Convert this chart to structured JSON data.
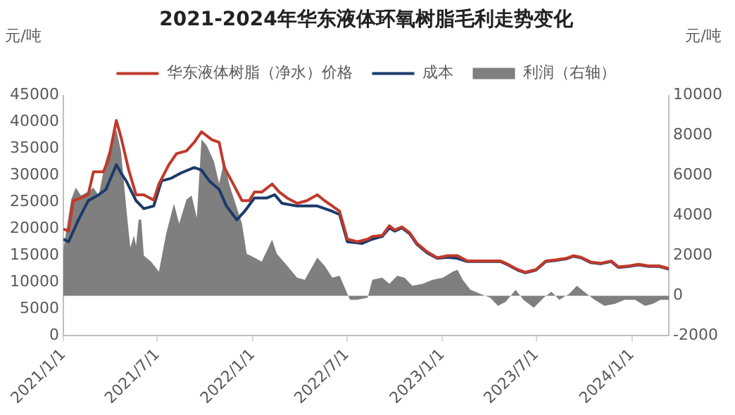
{
  "chart_data": {
    "type": "line",
    "title": "2021-2024年华东液体环氧树脂毛利走势变化",
    "ylabel": "元/吨",
    "y2label": "元/吨",
    "xlim": [
      "2021-01-01",
      "2024-03-12"
    ],
    "xticks": [
      {
        "value": "2021-01-01",
        "label": "2021/1/1"
      },
      {
        "value": "2021-07-01",
        "label": "2021/7/1"
      },
      {
        "value": "2022-01-01",
        "label": "2022/1/1"
      },
      {
        "value": "2022-07-01",
        "label": "2022/7/1"
      },
      {
        "value": "2023-01-01",
        "label": "2023/1/1"
      },
      {
        "value": "2023-07-01",
        "label": "2023/7/1"
      },
      {
        "value": "2024-01-01",
        "label": "2024/1/1"
      }
    ],
    "ylim": [
      0,
      45000
    ],
    "yticks": [
      0,
      5000,
      10000,
      15000,
      20000,
      25000,
      30000,
      35000,
      40000,
      45000
    ],
    "y2lim": [
      -2000,
      10000
    ],
    "y2ticks": [
      -2000,
      0,
      2000,
      4000,
      6000,
      8000,
      10000
    ],
    "grid": false,
    "legend": "top",
    "marker": "none",
    "line_style": "solid",
    "series": [
      {
        "name": "利润（右轴）",
        "type": "area",
        "axis": "y2",
        "color": "#7f7f7f",
        "x": [
          "2021-01-01",
          "2021-01-16",
          "2021-01-25",
          "2021-02-04",
          "2021-02-18",
          "2021-02-28",
          "2021-03-10",
          "2021-03-24",
          "2021-04-13",
          "2021-04-22",
          "2021-05-04",
          "2021-05-10",
          "2021-05-17",
          "2021-05-21",
          "2021-05-26",
          "2021-05-31",
          "2021-06-05",
          "2021-06-19",
          "2021-07-04",
          "2021-07-18",
          "2021-08-02",
          "2021-08-12",
          "2021-08-26",
          "2021-09-05",
          "2021-09-15",
          "2021-09-24",
          "2021-10-04",
          "2021-10-18",
          "2021-10-28",
          "2021-11-07",
          "2021-11-16",
          "2021-11-26",
          "2021-12-11",
          "2021-12-20",
          "2022-01-04",
          "2022-01-18",
          "2022-02-07",
          "2022-02-16",
          "2022-03-08",
          "2022-03-27",
          "2022-04-11",
          "2022-05-05",
          "2022-05-19",
          "2022-06-03",
          "2022-06-17",
          "2022-07-02",
          "2022-07-07",
          "2022-07-21",
          "2022-08-10",
          "2022-08-19",
          "2022-09-07",
          "2022-09-21",
          "2022-10-06",
          "2022-10-20",
          "2022-11-04",
          "2022-11-24",
          "2022-12-13",
          "2023-01-02",
          "2023-01-21",
          "2023-01-30",
          "2023-02-09",
          "2023-02-24",
          "2023-03-15",
          "2023-04-03",
          "2023-04-18",
          "2023-05-03",
          "2023-05-22",
          "2023-06-06",
          "2023-06-26",
          "2023-07-15",
          "2023-07-30",
          "2023-08-14",
          "2023-09-02",
          "2023-09-17",
          "2023-10-01",
          "2023-10-21",
          "2023-11-09",
          "2023-11-29",
          "2023-12-18",
          "2024-01-07",
          "2024-01-26",
          "2024-02-10",
          "2024-02-25",
          "2024-03-12"
        ],
        "values": [
          2300,
          4800,
          5400,
          5000,
          5200,
          5400,
          5000,
          6800,
          8300,
          7200,
          3900,
          2400,
          3000,
          2500,
          3800,
          3800,
          2000,
          1700,
          1200,
          3100,
          4600,
          3600,
          4800,
          5000,
          3900,
          7800,
          7500,
          6700,
          5600,
          6800,
          5600,
          4800,
          3600,
          2100,
          1900,
          1700,
          2800,
          2100,
          1500,
          900,
          800,
          1900,
          1500,
          900,
          1000,
          100,
          -200,
          -200,
          -100,
          800,
          900,
          600,
          1000,
          900,
          500,
          600,
          800,
          900,
          1200,
          1300,
          800,
          300,
          100,
          -100,
          -500,
          -300,
          300,
          -200,
          -600,
          -100,
          200,
          -200,
          100,
          500,
          200,
          -200,
          -500,
          -400,
          -200,
          -200,
          -500,
          -400,
          -200,
          -200
        ]
      },
      {
        "name": "华东液体树脂（净水）价格",
        "type": "line",
        "color": "#c0392b",
        "x": [
          "2021-01-01",
          "2021-01-11",
          "2021-01-20",
          "2021-02-04",
          "2021-02-18",
          "2021-02-28",
          "2021-03-19",
          "2021-03-29",
          "2021-04-13",
          "2021-04-22",
          "2021-05-07",
          "2021-05-21",
          "2021-06-05",
          "2021-06-24",
          "2021-07-04",
          "2021-07-23",
          "2021-08-07",
          "2021-08-26",
          "2021-09-10",
          "2021-09-24",
          "2021-10-14",
          "2021-10-28",
          "2021-11-07",
          "2021-11-21",
          "2021-12-11",
          "2021-12-25",
          "2022-01-04",
          "2022-01-18",
          "2022-02-07",
          "2022-02-21",
          "2022-03-08",
          "2022-03-27",
          "2022-04-15",
          "2022-05-05",
          "2022-05-19",
          "2022-06-03",
          "2022-06-17",
          "2022-07-02",
          "2022-07-21",
          "2022-08-10",
          "2022-08-19",
          "2022-09-07",
          "2022-09-21",
          "2022-10-01",
          "2022-10-15",
          "2022-10-30",
          "2022-11-13",
          "2022-12-03",
          "2022-12-22",
          "2023-01-11",
          "2023-01-30",
          "2023-02-18",
          "2023-03-19",
          "2023-04-08",
          "2023-04-23",
          "2023-05-07",
          "2023-05-26",
          "2023-06-10",
          "2023-06-30",
          "2023-07-19",
          "2023-08-07",
          "2023-08-27",
          "2023-09-10",
          "2023-09-25",
          "2023-10-14",
          "2023-11-02",
          "2023-11-22",
          "2023-12-06",
          "2023-12-26",
          "2024-01-14",
          "2024-02-02",
          "2024-02-22",
          "2024-03-12"
        ],
        "values": [
          20000,
          19600,
          25300,
          25800,
          26500,
          30700,
          30700,
          33000,
          40300,
          37200,
          31000,
          26400,
          26400,
          25400,
          28400,
          32000,
          34100,
          34600,
          36200,
          38200,
          36700,
          36200,
          31500,
          29000,
          25300,
          25300,
          26900,
          26900,
          28400,
          26900,
          25800,
          24800,
          25300,
          26400,
          25300,
          24300,
          23300,
          18100,
          17600,
          18100,
          18600,
          18800,
          20600,
          19800,
          20400,
          19300,
          17300,
          15700,
          14600,
          15000,
          15000,
          14000,
          14000,
          14000,
          14000,
          13400,
          12400,
          11900,
          12400,
          14000,
          14200,
          14500,
          15000,
          14700,
          13800,
          13600,
          14000,
          12900,
          13100,
          13400,
          13100,
          13100,
          12600
        ]
      },
      {
        "name": "成本",
        "type": "line",
        "color": "#1b3a6b",
        "x": [
          "2021-01-01",
          "2021-01-11",
          "2021-01-30",
          "2021-02-18",
          "2021-03-10",
          "2021-03-24",
          "2021-04-13",
          "2021-04-22",
          "2021-05-02",
          "2021-05-21",
          "2021-06-05",
          "2021-06-24",
          "2021-07-09",
          "2021-07-28",
          "2021-08-16",
          "2021-09-10",
          "2021-09-24",
          "2021-10-09",
          "2021-10-28",
          "2021-11-11",
          "2021-12-01",
          "2021-12-16",
          "2022-01-04",
          "2022-01-28",
          "2022-02-12",
          "2022-02-26",
          "2022-03-27",
          "2022-05-05",
          "2022-06-03",
          "2022-06-17",
          "2022-07-02",
          "2022-07-30",
          "2022-08-19",
          "2022-09-07",
          "2022-09-21",
          "2022-10-01",
          "2022-10-15",
          "2022-10-30",
          "2022-11-13",
          "2022-12-03",
          "2022-12-22",
          "2023-01-11",
          "2023-01-30",
          "2023-02-18",
          "2023-03-19",
          "2023-04-08",
          "2023-04-23",
          "2023-05-07",
          "2023-05-26",
          "2023-06-10",
          "2023-06-30",
          "2023-07-19",
          "2023-08-07",
          "2023-08-27",
          "2023-09-10",
          "2023-09-25",
          "2023-10-14",
          "2023-11-02",
          "2023-11-22",
          "2023-12-06",
          "2023-12-26",
          "2024-01-14",
          "2024-02-02",
          "2024-02-22",
          "2024-03-12"
        ],
        "values": [
          18100,
          17600,
          21700,
          25300,
          26400,
          27400,
          32000,
          30500,
          29000,
          25300,
          23800,
          24300,
          29000,
          29500,
          30500,
          31500,
          31000,
          29000,
          27400,
          24300,
          21700,
          23300,
          25800,
          25800,
          26400,
          24800,
          24300,
          24300,
          23300,
          22700,
          17600,
          17300,
          18100,
          18600,
          20200,
          19600,
          20200,
          19100,
          17100,
          15500,
          14500,
          14700,
          14500,
          13900,
          13900,
          13900,
          13900,
          13300,
          12300,
          11800,
          12300,
          13900,
          14100,
          14400,
          14900,
          14600,
          13700,
          13500,
          13900,
          12800,
          13000,
          13300,
          13000,
          13000,
          12500
        ]
      }
    ]
  }
}
